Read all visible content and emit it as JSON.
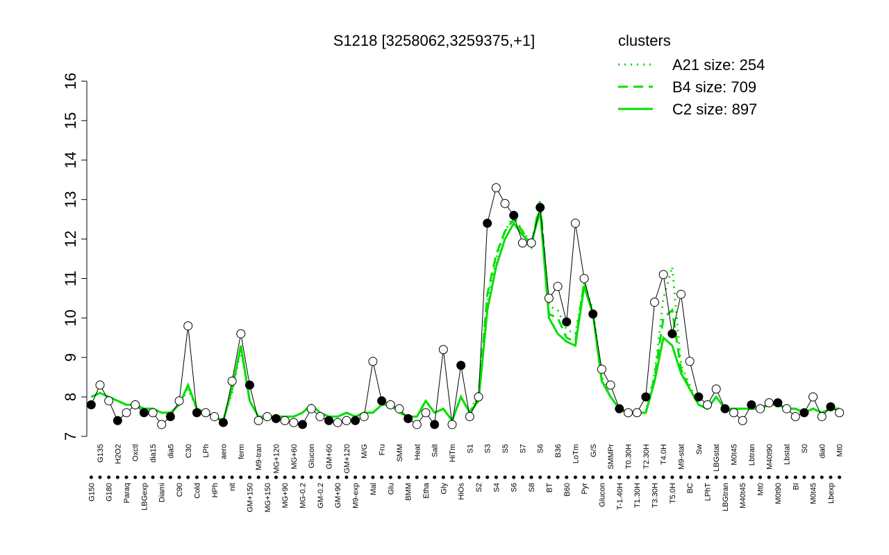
{
  "chart_data": {
    "type": "line",
    "title": "S1218 [3258062,3259375,+1]",
    "legend_title": "clusters",
    "legend": "top-right",
    "point_color": "#000000",
    "ylim": [
      7,
      16
    ],
    "yticks": [
      7,
      8,
      9,
      10,
      11,
      12,
      13,
      14,
      15,
      16
    ],
    "categories": [
      "G150",
      "G135",
      "G180",
      "H2O2",
      "Paraq",
      "Oxctl",
      "LBGexp",
      "dia15",
      "Diami",
      "dia5",
      "C90",
      "C30",
      "Cold",
      "LPh",
      "HPh",
      "aero",
      "nit",
      "ferm",
      "GM+150",
      "M9-tran",
      "MG+150",
      "MG+120",
      "MG+90",
      "MG+60",
      "MG-0.2",
      "Glucon",
      "GM-0.2",
      "GM+60",
      "GM+90",
      "GM+120",
      "M9-exp",
      "M/G",
      "Mal",
      "Fru",
      "Glu",
      "SMM",
      "BMM",
      "Heat",
      "Etha",
      "Salt",
      "Gly",
      "HiTm",
      "HiOs",
      "S1",
      "S2",
      "S3",
      "S4",
      "S5",
      "S6",
      "S7",
      "S8",
      "S6",
      "BT",
      "B36",
      "B60",
      "LoTm",
      "Pyr",
      "G/S",
      "Glucon",
      "SMMPr",
      "T-1.40H",
      "T0.30H",
      "T1.30H",
      "T2.30H",
      "T3.30H",
      "T4.0H",
      "T5.0H",
      "M9-stat",
      "BC",
      "Sw",
      "LPhT",
      "LBGstat",
      "LBGtran",
      "M0t45",
      "M40t45",
      "Lbtran",
      "Mt0",
      "M40t90",
      "M0t90",
      "Lbstat",
      "BI",
      "S0",
      "M0t45",
      "dia0",
      "Lbexp",
      "Mt0"
    ],
    "values": [
      7.8,
      8.3,
      7.9,
      7.4,
      7.6,
      7.8,
      7.6,
      7.6,
      7.3,
      7.5,
      7.9,
      9.8,
      7.6,
      7.6,
      7.5,
      7.35,
      8.4,
      9.6,
      8.3,
      7.4,
      7.5,
      7.45,
      7.4,
      7.35,
      7.3,
      7.7,
      7.5,
      7.4,
      7.35,
      7.4,
      7.4,
      7.5,
      8.9,
      7.9,
      7.8,
      7.7,
      7.45,
      7.3,
      7.6,
      7.3,
      9.2,
      7.3,
      8.8,
      7.5,
      8.0,
      12.4,
      13.3,
      12.9,
      12.6,
      11.9,
      11.9,
      12.8,
      10.5,
      10.8,
      9.9,
      12.4,
      11.0,
      10.1,
      8.7,
      8.3,
      7.7,
      7.6,
      7.6,
      8.0,
      10.4,
      11.1,
      9.6,
      10.6,
      8.9,
      8.0,
      7.8,
      8.2,
      7.7,
      7.6,
      7.4,
      7.8,
      7.7,
      7.85,
      7.85,
      7.7,
      7.5,
      7.6,
      8.0,
      7.5,
      7.75,
      7.6
    ],
    "series": [
      {
        "name": "A21 size: 254",
        "color": "#00e000",
        "dash": "dotted",
        "values": [
          8.0,
          8.1,
          8.0,
          7.9,
          7.8,
          7.8,
          7.7,
          7.7,
          7.6,
          7.6,
          7.8,
          8.2,
          7.7,
          7.6,
          7.5,
          7.4,
          8.1,
          9.2,
          7.9,
          7.5,
          7.5,
          7.5,
          7.5,
          7.5,
          7.6,
          7.8,
          7.6,
          7.5,
          7.5,
          7.6,
          7.5,
          7.6,
          7.6,
          7.8,
          7.8,
          7.6,
          7.5,
          7.5,
          7.9,
          7.6,
          7.7,
          7.4,
          8.0,
          7.6,
          8.1,
          10.4,
          11.5,
          12.2,
          12.6,
          12.2,
          11.9,
          12.9,
          10.3,
          10.2,
          9.7,
          9.6,
          10.9,
          10.2,
          8.5,
          8.0,
          7.7,
          7.6,
          7.6,
          7.6,
          8.6,
          10.5,
          11.3,
          8.8,
          8.3,
          7.8,
          7.7,
          8.0,
          7.7,
          7.7,
          7.7,
          7.7,
          7.7,
          7.8,
          7.8,
          7.7,
          7.7,
          7.6,
          7.7,
          7.6,
          7.7,
          7.7
        ]
      },
      {
        "name": "B4 size: 709",
        "color": "#00e000",
        "dash": "dashed",
        "values": [
          8.0,
          8.1,
          8.0,
          7.9,
          7.8,
          7.8,
          7.7,
          7.7,
          7.6,
          7.6,
          7.8,
          8.3,
          7.7,
          7.6,
          7.5,
          7.4,
          8.2,
          9.3,
          7.9,
          7.5,
          7.5,
          7.5,
          7.5,
          7.5,
          7.6,
          7.8,
          7.6,
          7.5,
          7.5,
          7.6,
          7.5,
          7.6,
          7.6,
          7.8,
          7.8,
          7.6,
          7.5,
          7.5,
          7.9,
          7.6,
          7.7,
          7.4,
          8.0,
          7.6,
          8.0,
          10.6,
          11.6,
          12.2,
          12.5,
          12.2,
          11.8,
          13.0,
          10.1,
          10.0,
          9.5,
          9.4,
          10.9,
          10.1,
          8.4,
          8.0,
          7.7,
          7.6,
          7.6,
          7.6,
          8.5,
          10.0,
          10.2,
          8.7,
          8.2,
          7.8,
          7.7,
          8.0,
          7.7,
          7.7,
          7.7,
          7.7,
          7.7,
          7.8,
          7.8,
          7.7,
          7.7,
          7.6,
          7.7,
          7.6,
          7.7,
          7.7
        ]
      },
      {
        "name": "C2 size: 897",
        "color": "#00e000",
        "dash": "solid",
        "values": [
          8.0,
          8.1,
          8.0,
          7.9,
          7.8,
          7.8,
          7.7,
          7.7,
          7.6,
          7.6,
          7.8,
          8.3,
          7.7,
          7.6,
          7.5,
          7.4,
          8.2,
          9.3,
          7.9,
          7.5,
          7.5,
          7.5,
          7.5,
          7.5,
          7.6,
          7.8,
          7.6,
          7.5,
          7.5,
          7.6,
          7.5,
          7.6,
          7.6,
          7.8,
          7.8,
          7.6,
          7.5,
          7.5,
          7.9,
          7.6,
          7.7,
          7.4,
          8.0,
          7.6,
          7.9,
          10.2,
          11.3,
          12.0,
          12.4,
          12.1,
          11.9,
          12.7,
          10.0,
          9.6,
          9.4,
          9.3,
          10.8,
          10.1,
          8.4,
          8.0,
          7.7,
          7.6,
          7.6,
          7.6,
          8.4,
          9.5,
          9.3,
          8.6,
          8.2,
          7.8,
          7.7,
          8.0,
          7.7,
          7.7,
          7.7,
          7.7,
          7.7,
          7.8,
          7.8,
          7.7,
          7.7,
          7.6,
          7.7,
          7.6,
          7.7,
          7.7
        ]
      }
    ]
  }
}
